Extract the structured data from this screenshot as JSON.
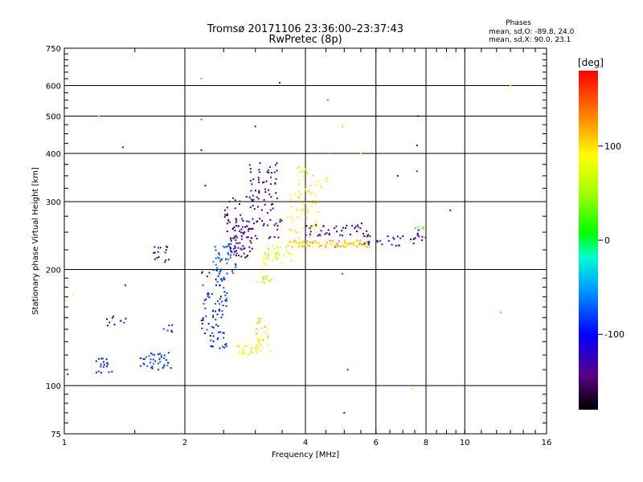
{
  "header": {
    "title_line1": "Tromsø 20171106 23:36:00–23:37:43",
    "title_line2": "RwPretec (8p)",
    "stats_heading": "Phases",
    "stats_o": "mean, sd,O: -89.8, 24.0",
    "stats_x": "mean, sd,X:  90.0, 23.1"
  },
  "colorbar": {
    "unit_label": "[deg]",
    "ticks": [
      {
        "label": "100",
        "value": 100
      },
      {
        "label": "0",
        "value": 0
      },
      {
        "label": "-100",
        "value": -100
      }
    ],
    "range": [
      -180,
      180
    ]
  },
  "chart_data": {
    "type": "scatter",
    "xlabel": "Frequency [MHz]",
    "ylabel": "Stationary phase Virtual Height [km]",
    "xscale": "log",
    "yscale": "log",
    "xlim": [
      1,
      16
    ],
    "ylim": [
      75,
      750
    ],
    "x_ticks": [
      {
        "value": 1,
        "label": "1"
      },
      {
        "value": 2,
        "label": "2"
      },
      {
        "value": 4,
        "label": "4"
      },
      {
        "value": 6,
        "label": "6"
      },
      {
        "value": 8,
        "label": "8"
      },
      {
        "value": 10,
        "label": "10"
      },
      {
        "value": 16,
        "label": "16"
      }
    ],
    "y_ticks": [
      {
        "value": 75,
        "label": "75"
      },
      {
        "value": 100,
        "label": "100"
      },
      {
        "value": 200,
        "label": "200"
      },
      {
        "value": 300,
        "label": "300"
      },
      {
        "value": 400,
        "label": "400"
      },
      {
        "value": 500,
        "label": "500"
      },
      {
        "value": 600,
        "label": "600"
      },
      {
        "value": 750,
        "label": "750"
      }
    ],
    "grid": true,
    "color_axis": "phase [deg]",
    "clusters": [
      {
        "f": [
          1.2,
          1.32
        ],
        "h": [
          108,
          118
        ],
        "n": 18,
        "phase": [
          -110,
          -85
        ]
      },
      {
        "f": [
          1.25,
          1.45
        ],
        "h": [
          142,
          152
        ],
        "n": 10,
        "phase": [
          -110,
          -90
        ]
      },
      {
        "f": [
          1.55,
          1.85
        ],
        "h": [
          110,
          122
        ],
        "n": 42,
        "phase": [
          -95,
          -60
        ]
      },
      {
        "f": [
          1.75,
          1.9
        ],
        "h": [
          135,
          145
        ],
        "n": 6,
        "phase": [
          -100,
          -80
        ]
      },
      {
        "f": [
          1.65,
          1.85
        ],
        "h": [
          208,
          232
        ],
        "n": 16,
        "phase": [
          -150,
          -115
        ]
      },
      {
        "f": [
          2.2,
          2.55
        ],
        "h": [
          125,
          155
        ],
        "n": 40,
        "phase": [
          -110,
          -75
        ]
      },
      {
        "f": [
          2.2,
          2.55
        ],
        "h": [
          155,
          200
        ],
        "n": 55,
        "phase": [
          -100,
          -70
        ]
      },
      {
        "f": [
          2.35,
          2.7
        ],
        "h": [
          195,
          235
        ],
        "n": 45,
        "phase": [
          -90,
          -60
        ]
      },
      {
        "f": [
          2.6,
          2.95
        ],
        "h": [
          215,
          260
        ],
        "n": 50,
        "phase": [
          -155,
          -115
        ]
      },
      {
        "f": [
          2.5,
          3.5
        ],
        "h": [
          240,
          310
        ],
        "n": 80,
        "phase": [
          -160,
          -115
        ]
      },
      {
        "f": [
          2.9,
          3.4
        ],
        "h": [
          300,
          380
        ],
        "n": 45,
        "phase": [
          -150,
          -110
        ]
      },
      {
        "f": [
          2.65,
          3.3
        ],
        "h": [
          120,
          128
        ],
        "n": 30,
        "phase": [
          60,
          100
        ]
      },
      {
        "f": [
          3.0,
          3.25
        ],
        "h": [
          128,
          152
        ],
        "n": 25,
        "phase": [
          85,
          115
        ]
      },
      {
        "f": [
          3.0,
          3.3
        ],
        "h": [
          185,
          192
        ],
        "n": 12,
        "phase": [
          45,
          75
        ]
      },
      {
        "f": [
          3.1,
          3.7
        ],
        "h": [
          205,
          230
        ],
        "n": 35,
        "phase": [
          50,
          95
        ]
      },
      {
        "f": [
          3.6,
          4.3
        ],
        "h": [
          240,
          320
        ],
        "n": 45,
        "phase": [
          70,
          110
        ]
      },
      {
        "f": [
          3.8,
          4.6
        ],
        "h": [
          310,
          370
        ],
        "n": 25,
        "phase": [
          70,
          105
        ]
      },
      {
        "f": [
          3.6,
          5.8
        ],
        "h": [
          228,
          238
        ],
        "n": 95,
        "phase": [
          85,
          140
        ]
      },
      {
        "f": [
          4.0,
          5.8
        ],
        "h": [
          244,
          265
        ],
        "n": 40,
        "phase": [
          -150,
          -110
        ]
      },
      {
        "f": [
          5.6,
          7.6
        ],
        "h": [
          230,
          245
        ],
        "n": 25,
        "phase": [
          -115,
          -85
        ]
      },
      {
        "f": [
          7.4,
          8.0
        ],
        "h": [
          238,
          255
        ],
        "n": 10,
        "phase": [
          -150,
          -115
        ]
      },
      {
        "f": [
          7.4,
          7.9
        ],
        "h": [
          250,
          260
        ],
        "n": 5,
        "phase": [
          15,
          40
        ]
      }
    ],
    "scattered_points": [
      [
        2.2,
        625,
        125
      ],
      [
        3.45,
        610,
        -130
      ],
      [
        4.55,
        550,
        150
      ],
      [
        4.95,
        470,
        110
      ],
      [
        2.2,
        490,
        150
      ],
      [
        1.22,
        500,
        40
      ],
      [
        1.4,
        415,
        -140
      ],
      [
        7.65,
        500,
        -135
      ],
      [
        7.6,
        420,
        -140
      ],
      [
        7.6,
        360,
        -70
      ],
      [
        13.0,
        600,
        100
      ],
      [
        9.2,
        285,
        -130
      ],
      [
        5.0,
        85,
        -120
      ],
      [
        5.1,
        110,
        -90
      ],
      [
        1.02,
        107,
        -110
      ],
      [
        1.05,
        172,
        90
      ],
      [
        1.42,
        182,
        -140
      ],
      [
        2.2,
        408,
        -120
      ],
      [
        2.25,
        330,
        -150
      ],
      [
        4.95,
        195,
        170
      ],
      [
        7.4,
        98,
        60
      ],
      [
        12.3,
        155,
        -30
      ],
      [
        6.8,
        350,
        -155
      ],
      [
        5.5,
        400,
        100
      ],
      [
        3.0,
        470,
        -150
      ],
      [
        4.6,
        400,
        130
      ]
    ]
  }
}
